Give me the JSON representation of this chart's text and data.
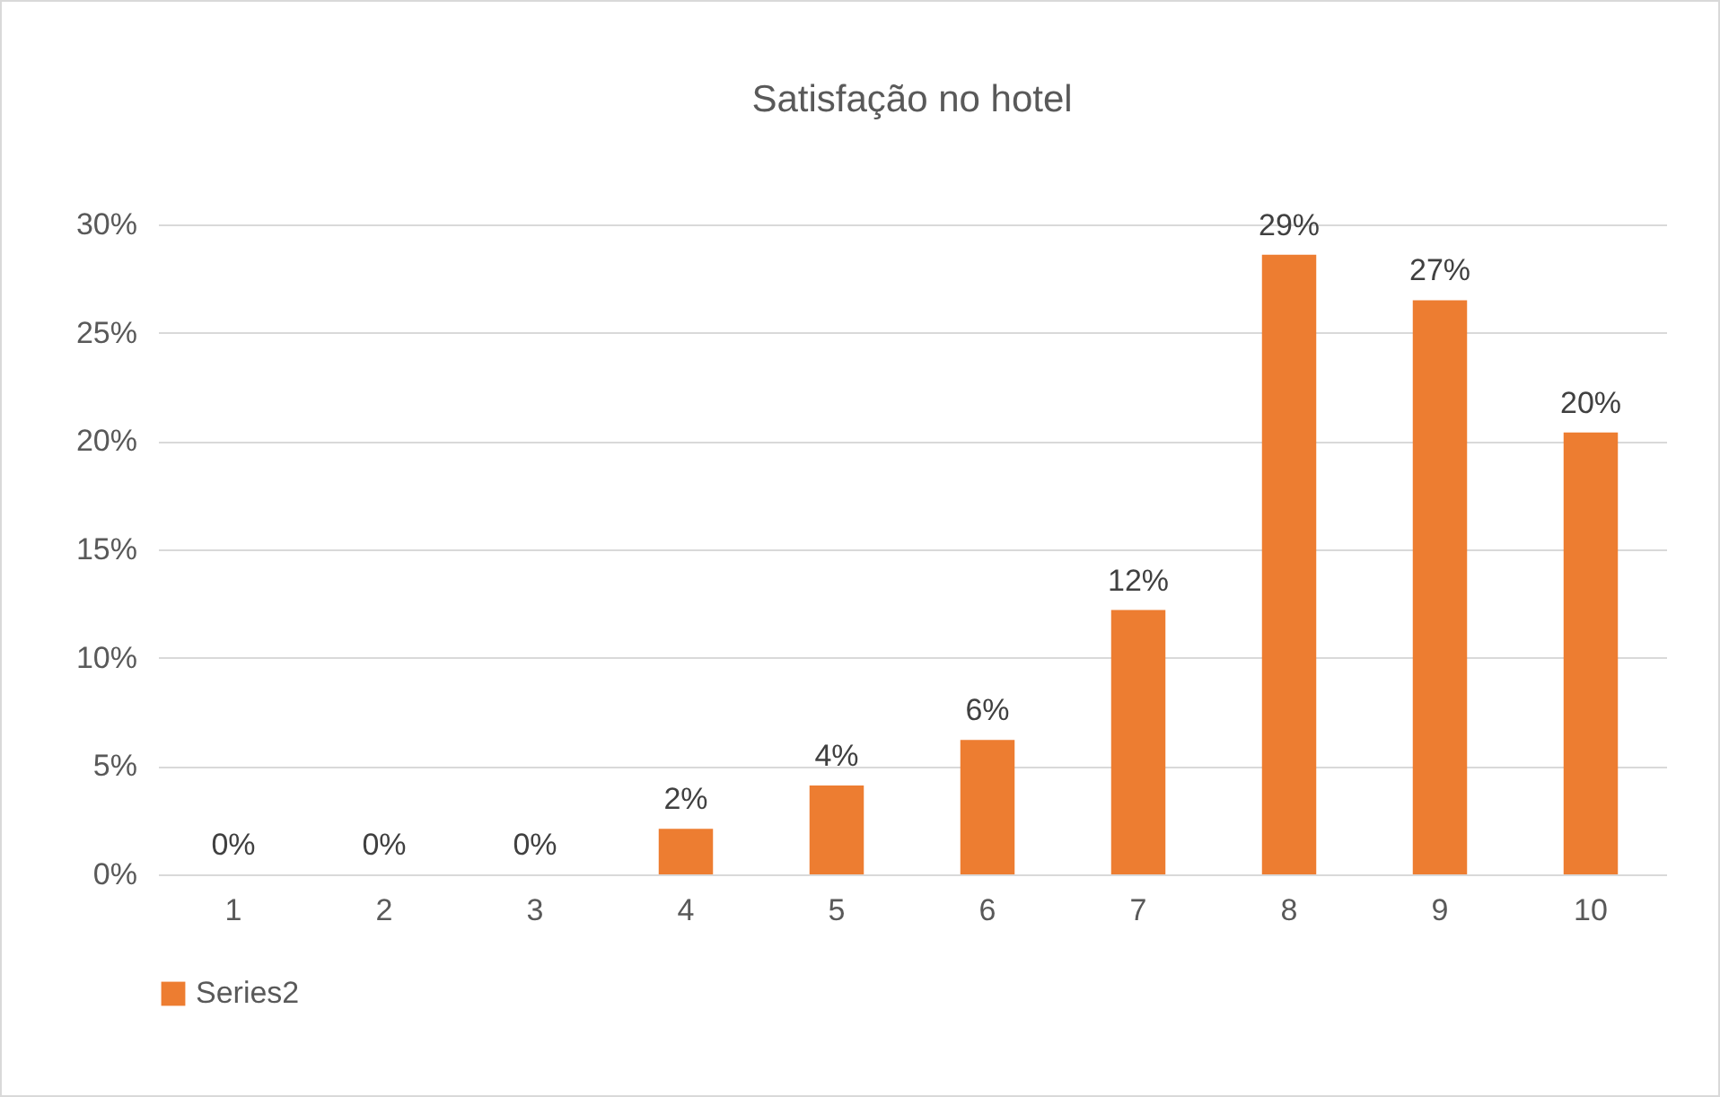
{
  "chart_data": {
    "type": "bar",
    "title": "Satisfação no hotel",
    "categories": [
      "1",
      "2",
      "3",
      "4",
      "5",
      "6",
      "7",
      "8",
      "9",
      "10"
    ],
    "series": [
      {
        "name": "Series2",
        "color": "#ed7d31",
        "values": [
          0,
          0,
          0,
          2.1,
          4.1,
          6.2,
          12.2,
          28.6,
          26.5,
          20.4
        ],
        "value_labels": [
          "0%",
          "0%",
          "0%",
          "2%",
          "4%",
          "6%",
          "12%",
          "29%",
          "27%",
          "20%"
        ]
      }
    ],
    "ylim": [
      0,
      30
    ],
    "yticks": [
      {
        "value": 0,
        "label": "0%"
      },
      {
        "value": 5,
        "label": "5%"
      },
      {
        "value": 10,
        "label": "10%"
      },
      {
        "value": 15,
        "label": "15%"
      },
      {
        "value": 20,
        "label": "20%"
      },
      {
        "value": 25,
        "label": "25%"
      },
      {
        "value": 30,
        "label": "30%"
      }
    ],
    "grid": "y",
    "legend": "bottom"
  }
}
